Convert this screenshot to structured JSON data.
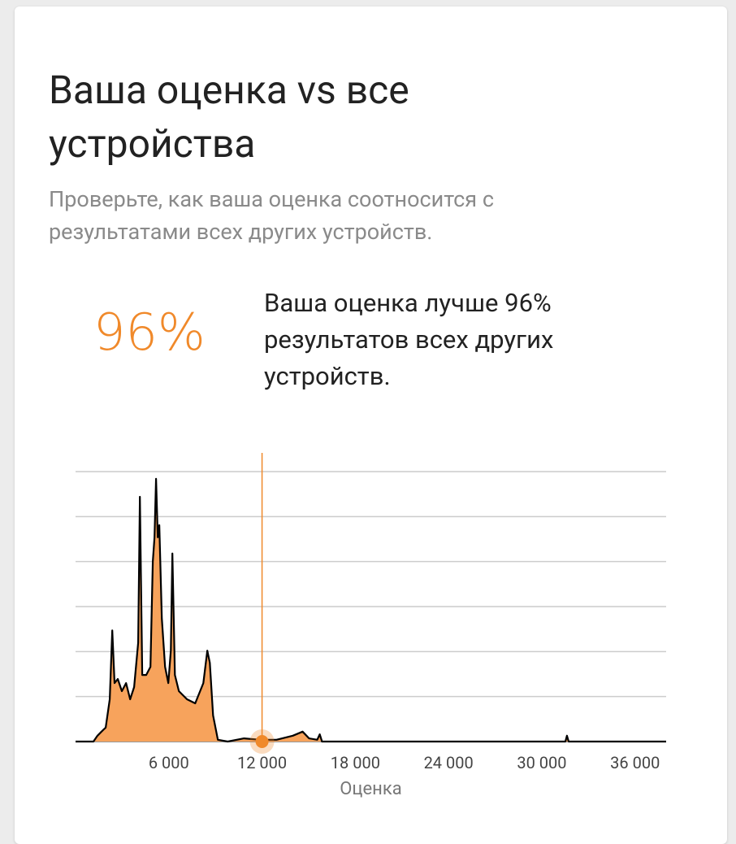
{
  "header": {
    "title": "Ваша оценка vs все устройства",
    "subtitle": "Проверьте, как ваша оценка соотносится с результатами всех других устройств."
  },
  "score": {
    "percent": "96%",
    "text": "Ваша оценка лучше 96% результатов всех других устройств."
  },
  "chart_data": {
    "type": "area",
    "color": "#f7a35c",
    "line_color": "#000000",
    "marker_color": "#f0892a",
    "x_label": "Оценка",
    "x": [
      0,
      1150,
      1410,
      1670,
      1940,
      2200,
      2360,
      2510,
      2720,
      2980,
      3250,
      3510,
      3770,
      4030,
      4140,
      4290,
      4550,
      4820,
      4970,
      5080,
      5180,
      5290,
      5390,
      5550,
      5760,
      5970,
      6130,
      6230,
      6390,
      6650,
      7170,
      7700,
      8220,
      8480,
      8640,
      8850,
      9160,
      9790,
      10840,
      11880,
      12930,
      13980,
      14610,
      15030,
      15550,
      15710,
      15860,
      21310,
      31520,
      31620,
      31730,
      38000
    ],
    "values": [
      0,
      0,
      0.13,
      0.22,
      0.31,
      0.94,
      2.47,
      1.3,
      1.39,
      1.12,
      1.3,
      0.94,
      1.21,
      2.2,
      5.44,
      1.48,
      1.48,
      1.66,
      4.0,
      4.54,
      5.84,
      4.54,
      4.81,
      2.74,
      1.66,
      1.3,
      2.02,
      4.18,
      1.48,
      1.12,
      0.94,
      0.85,
      1.3,
      2.02,
      1.75,
      0.58,
      0.04,
      0,
      0.07,
      0.04,
      0.04,
      0.13,
      0.22,
      0.07,
      0.04,
      0.16,
      0,
      0,
      0,
      0.13,
      0,
      0
    ],
    "marker_x": 12000,
    "xlim": [
      0,
      38000
    ],
    "xticks": [
      {
        "value": 6000,
        "label": "6 000"
      },
      {
        "value": 12000,
        "label": "12 000"
      },
      {
        "value": 18000,
        "label": "18 000"
      },
      {
        "value": 24000,
        "label": "24 000"
      },
      {
        "value": 30000,
        "label": "30 000"
      },
      {
        "value": 36000,
        "label": "36 000"
      }
    ],
    "ylim": [
      0,
      6
    ],
    "yticks": [
      0,
      1,
      2,
      3,
      4,
      5,
      6
    ],
    "grid": true
  }
}
